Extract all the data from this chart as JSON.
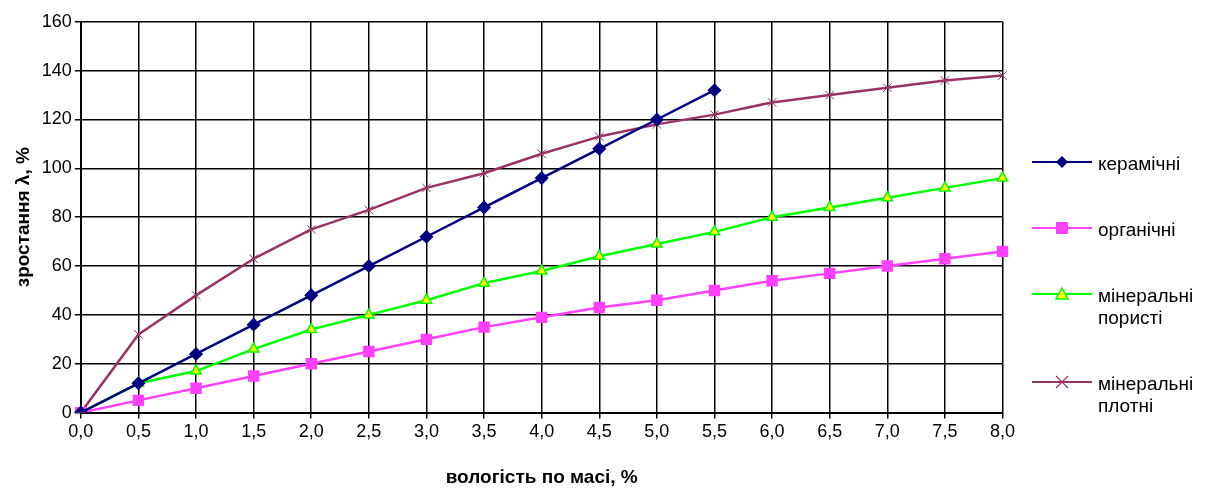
{
  "chart_data": {
    "type": "line",
    "xlabel": "вологість по масі, %",
    "ylabel": "зростання λ, %",
    "categories": [
      "0,0",
      "0,5",
      "1,0",
      "1,5",
      "2,0",
      "2,5",
      "3,0",
      "3,5",
      "4,0",
      "4,5",
      "5,0",
      "5,5",
      "6,0",
      "6,5",
      "7,0",
      "7,5",
      "8,0"
    ],
    "series": [
      {
        "name": "керамічні",
        "color": "#000080",
        "marker": "diamond",
        "values": [
          0,
          12,
          24,
          36,
          48,
          60,
          72,
          84,
          96,
          108,
          120,
          132,
          null,
          null,
          null,
          null,
          null
        ]
      },
      {
        "name": "органічні",
        "color": "#ff40ff",
        "marker": "square",
        "values": [
          0,
          5,
          10,
          15,
          20,
          25,
          30,
          35,
          39,
          43,
          46,
          50,
          54,
          57,
          60,
          63,
          66
        ]
      },
      {
        "name": "мінеральні пористі",
        "color": "#00ff00",
        "marker": "triangle",
        "values": [
          0,
          12,
          17,
          26,
          34,
          40,
          46,
          53,
          58,
          64,
          69,
          74,
          80,
          84,
          88,
          92,
          96
        ]
      },
      {
        "name": "мінеральні плотні",
        "color": "#993366",
        "marker": "cross",
        "values": [
          0,
          32,
          48,
          63,
          75,
          83,
          92,
          98,
          106,
          113,
          118,
          122,
          127,
          130,
          133,
          136,
          138
        ]
      }
    ],
    "ylim": [
      0,
      160
    ],
    "yticks": [
      0,
      20,
      40,
      60,
      80,
      100,
      120,
      140,
      160
    ],
    "grid": true,
    "legend": "right"
  }
}
